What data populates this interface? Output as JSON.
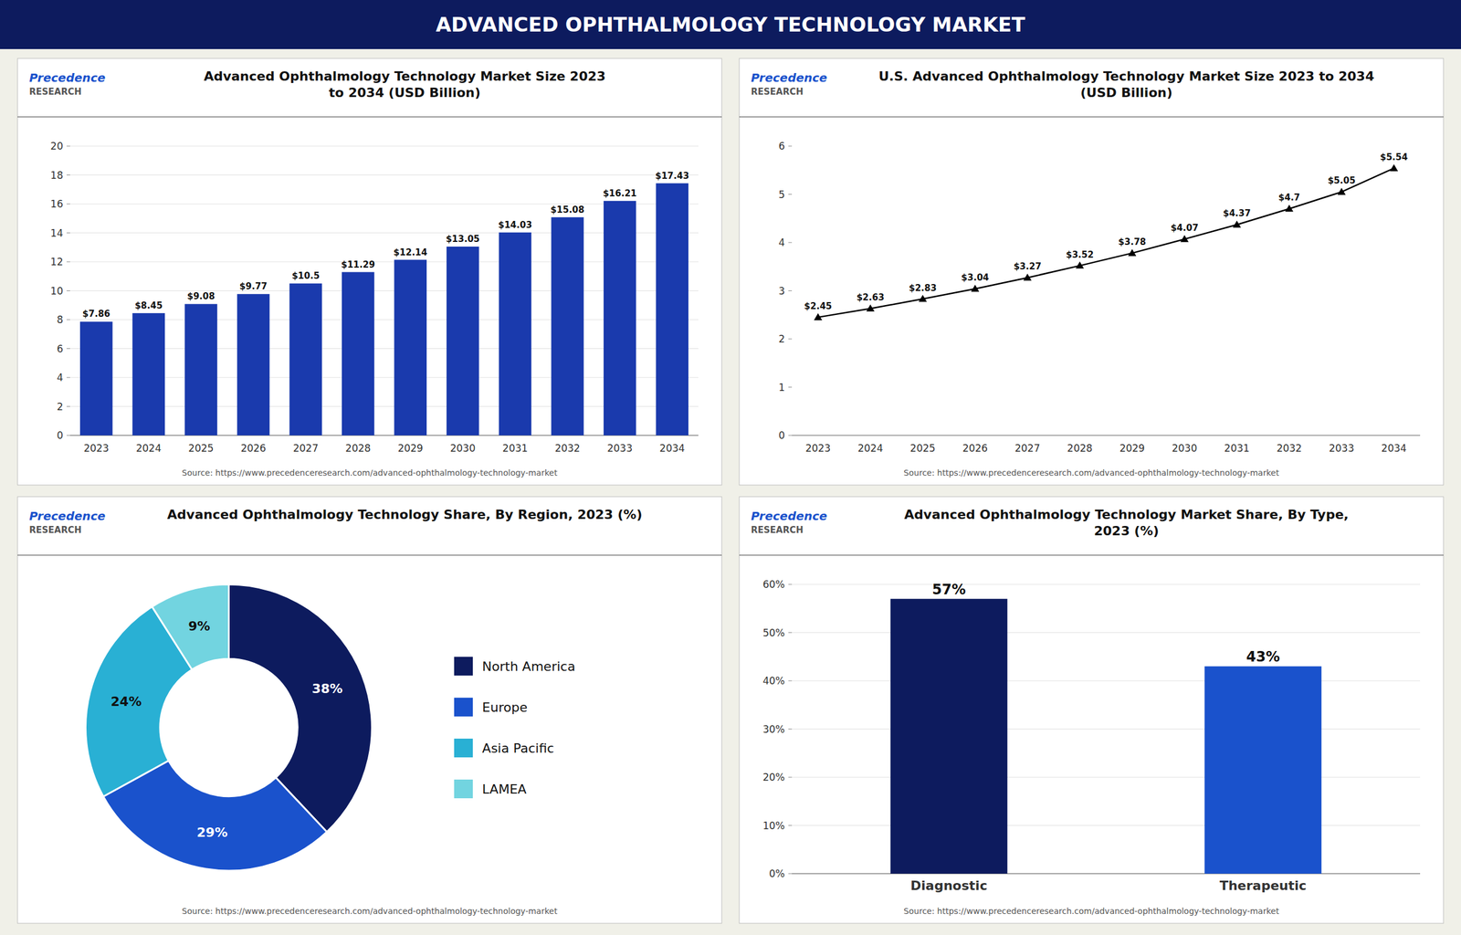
{
  "title": "ADVANCED OPHTHALMOLOGY TECHNOLOGY MARKET",
  "chart_data": [
    {
      "type": "bar",
      "title": "Advanced Ophthalmology Technology Market Size 2023\nto 2034 (USD Billion)",
      "annotations": [
        "Precedence",
        "RESEARCH",
        "Source: https://www.precedenceresearch.com/advanced-ophthalmology-technology-market"
      ],
      "categories": [
        "2023",
        "2024",
        "2025",
        "2026",
        "2027",
        "2028",
        "2029",
        "2030",
        "2031",
        "2032",
        "2033",
        "2034"
      ],
      "values": [
        7.86,
        8.45,
        9.08,
        9.77,
        10.5,
        11.29,
        12.14,
        13.05,
        14.03,
        15.08,
        16.21,
        17.43
      ],
      "value_labels": [
        "$7.86",
        "$8.45",
        "$9.08",
        "$9.77",
        "$10.5",
        "$11.29",
        "$12.14",
        "$13.05",
        "$14.03",
        "$15.08",
        "$16.21",
        "$17.43"
      ],
      "color": "#1a3aad",
      "ylim": [
        0,
        20
      ],
      "yticks": [
        0,
        2,
        4,
        6,
        8,
        10,
        12,
        14,
        16,
        18,
        20
      ],
      "grid": true,
      "data_labels": true
    },
    {
      "type": "line",
      "title": "U.S. Advanced Ophthalmology Technology Market Size 2023 to 2034\n(USD Billion)",
      "annotations": [
        "Precedence",
        "RESEARCH",
        "Source: https://www.precedenceresearch.com/advanced-ophthalmology-technology-market"
      ],
      "categories": [
        "2023",
        "2024",
        "2025",
        "2026",
        "2027",
        "2028",
        "2029",
        "2030",
        "2031",
        "2032",
        "2033",
        "2034"
      ],
      "values": [
        2.45,
        2.63,
        2.83,
        3.04,
        3.27,
        3.52,
        3.78,
        4.07,
        4.37,
        4.7,
        5.05,
        5.54
      ],
      "value_labels": [
        "$2.45",
        "$2.63",
        "$2.83",
        "$3.04",
        "$3.27",
        "$3.52",
        "$3.78",
        "$4.07",
        "$4.37",
        "$4.7",
        "$5.05",
        "$5.54"
      ],
      "color": "#000000",
      "marker": "triangle",
      "ylim": [
        0,
        6
      ],
      "yticks": [
        0,
        1,
        2,
        3,
        4,
        5,
        6
      ],
      "grid": false,
      "data_labels": true
    },
    {
      "type": "donut",
      "title": "Advanced Ophthalmology Technology Share, By Region, 2023 (%)",
      "annotations": [
        "Precedence",
        "RESEARCH",
        "Source: https://www.precedenceresearch.com/advanced-ophthalmology-technology-market"
      ],
      "categories": [
        "North America",
        "Europe",
        "Asia Pacific",
        "LAMEA"
      ],
      "values": [
        38,
        29,
        24,
        9
      ],
      "value_labels": [
        "38%",
        "29%",
        "24%",
        "9%"
      ],
      "colors": [
        "#0d1b5e",
        "#1a52cc",
        "#29b0d4",
        "#72d4e0"
      ],
      "data_labels": true,
      "legend": "right"
    },
    {
      "type": "bar",
      "title": "Advanced Ophthalmology Technology Market Share, By Type,\n2023 (%)",
      "annotations": [
        "Precedence",
        "RESEARCH",
        "Source: https://www.precedenceresearch.com/advanced-ophthalmology-technology-market"
      ],
      "categories": [
        "Diagnostic",
        "Therapeutic"
      ],
      "values": [
        57,
        43
      ],
      "value_labels": [
        "57%",
        "43%"
      ],
      "colors": [
        "#0d1b5e",
        "#1a52cc"
      ],
      "ylim": [
        0,
        60
      ],
      "yticks": [
        {
          "value": 0,
          "label": "0%"
        },
        {
          "value": 10,
          "label": "10%"
        },
        {
          "value": 20,
          "label": "20%"
        },
        {
          "value": 30,
          "label": "30%"
        },
        {
          "value": 40,
          "label": "40%"
        },
        {
          "value": 50,
          "label": "50%"
        },
        {
          "value": 60,
          "label": "60%"
        }
      ],
      "grid": true,
      "data_labels": true
    }
  ]
}
